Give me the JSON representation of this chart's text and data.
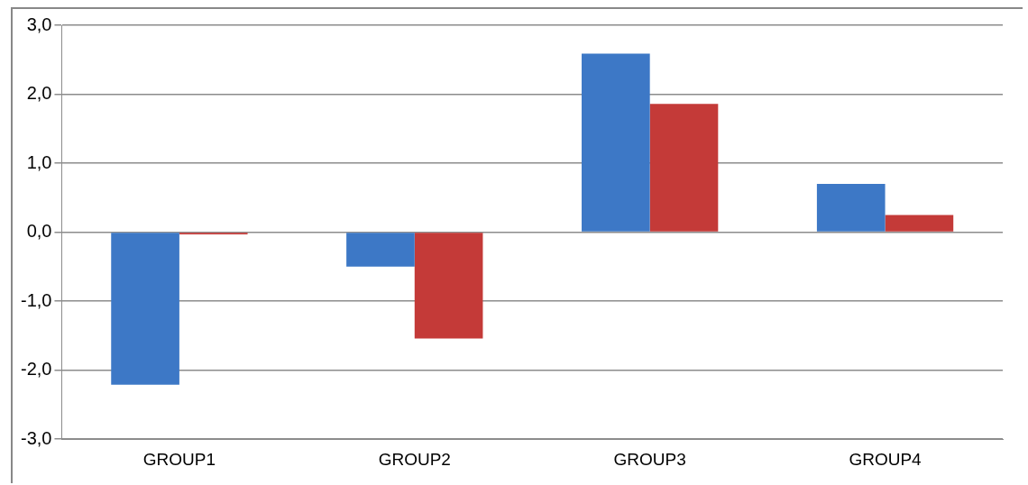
{
  "chart_data": {
    "type": "bar",
    "categories": [
      "GROUP1",
      "GROUP2",
      "GROUP3",
      "GROUP4"
    ],
    "series": [
      {
        "color": "#3d78c6",
        "values": [
          -2.21,
          -0.5,
          2.59,
          0.7
        ]
      },
      {
        "color": "#c43a38",
        "values": [
          -0.03,
          -1.54,
          1.86,
          0.25
        ]
      }
    ],
    "ylim": [
      -3,
      3
    ],
    "yticks": [
      {
        "value": -3,
        "label": "-3,0"
      },
      {
        "value": -2,
        "label": "-2,0"
      },
      {
        "value": -1,
        "label": "-1,0"
      },
      {
        "value": 0,
        "label": "0,0"
      },
      {
        "value": 1,
        "label": "1,0"
      },
      {
        "value": 2,
        "label": "2,0"
      },
      {
        "value": 3,
        "label": "3,0"
      }
    ],
    "grid": "y"
  }
}
